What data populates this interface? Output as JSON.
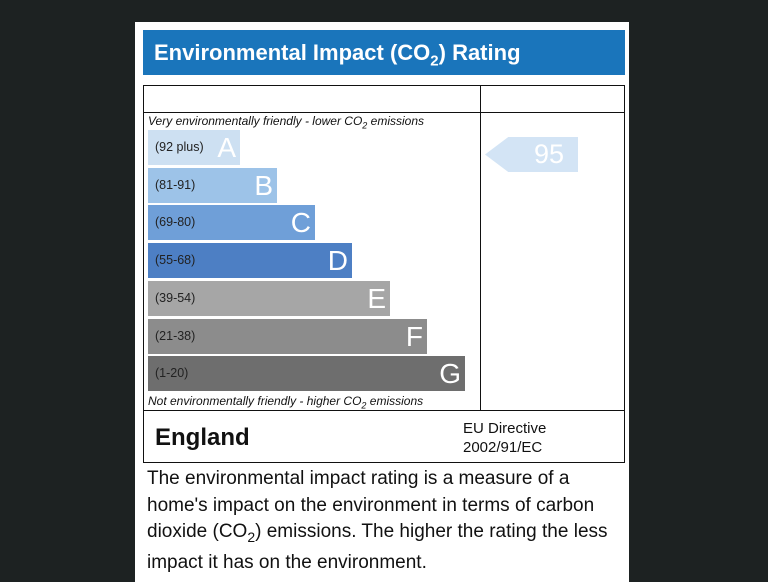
{
  "title": {
    "pre": "Environmental Impact (CO",
    "sub": "2",
    "post": ") Rating"
  },
  "top_caption": {
    "pre": "Very environmentally friendly - lower CO",
    "sub": "2",
    "post": " emissions"
  },
  "bottom_caption": {
    "pre": "Not environmentally friendly - higher CO",
    "sub": "2",
    "post": " emissions"
  },
  "bands": [
    {
      "range": "(92 plus)",
      "letter": "A",
      "color": "#cde0f2"
    },
    {
      "range": "(81-91)",
      "letter": "B",
      "color": "#9dc3e8"
    },
    {
      "range": "(69-80)",
      "letter": "C",
      "color": "#6f9fd8"
    },
    {
      "range": "(55-68)",
      "letter": "D",
      "color": "#4d7fc4"
    },
    {
      "range": "(39-54)",
      "letter": "E",
      "color": "#a6a6a6"
    },
    {
      "range": "(21-38)",
      "letter": "F",
      "color": "#8c8c8c"
    },
    {
      "range": "(1-20)",
      "letter": "G",
      "color": "#6e6e6e"
    }
  ],
  "current_rating": "95",
  "region": "England",
  "directive": {
    "line1": "EU Directive",
    "line2": "2002/91/EC"
  },
  "description": {
    "pre": "The environmental impact rating is a measure of a home's impact on the environment in terms of carbon dioxide (CO",
    "sub": "2",
    "post": ") emissions. The higher the rating the less impact it has on the environment."
  },
  "header_color": "#1a75bb"
}
